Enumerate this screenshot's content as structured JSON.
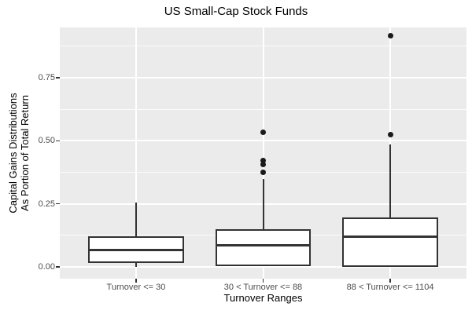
{
  "chart_data": {
    "type": "boxplot",
    "title": "US Small-Cap Stock Funds",
    "xlabel": "Turnover Ranges",
    "ylabel_lines": [
      "Capital Gains Distributions",
      "As Portion of Total Return"
    ],
    "categories": [
      "Turnover <= 30",
      "30 < Turnover <= 88",
      "88 < Turnover <= 1104"
    ],
    "ylim": [
      -0.047,
      0.949
    ],
    "y_major_ticks": [
      0.0,
      0.25,
      0.5,
      0.75
    ],
    "y_tick_labels": [
      "0.00",
      "0.25",
      "0.50",
      "0.75"
    ],
    "y_minor_ticks": [
      0.125,
      0.375,
      0.625,
      0.875
    ],
    "grid": true,
    "legend": "none",
    "boxes": [
      {
        "category": "Turnover <= 30",
        "whisker_low": 0.0,
        "q1": 0.016,
        "median": 0.068,
        "q3": 0.122,
        "whisker_high": 0.254,
        "outliers": []
      },
      {
        "category": "30 < Turnover <= 88",
        "whisker_low": 0.002,
        "q1": 0.002,
        "median": 0.086,
        "q3": 0.15,
        "whisker_high": 0.348,
        "outliers": [
          0.375,
          0.405,
          0.422,
          0.535
        ]
      },
      {
        "category": "88 < Turnover <= 1104",
        "whisker_low": 0.0,
        "q1": 0.0,
        "median": 0.119,
        "q3": 0.195,
        "whisker_high": 0.485,
        "outliers": [
          0.523,
          0.916
        ]
      }
    ],
    "colors": {
      "panel_bg": "#EBEBEB",
      "grid_major": "#FFFFFF",
      "grid_minor": "#FFFFFF",
      "box_stroke": "#333333",
      "box_fill": "#FFFFFF",
      "outlier": "#1A1A1A",
      "tick_mark": "#333333",
      "tick_text": "#4D4D4D",
      "title_text": "#000000"
    }
  }
}
